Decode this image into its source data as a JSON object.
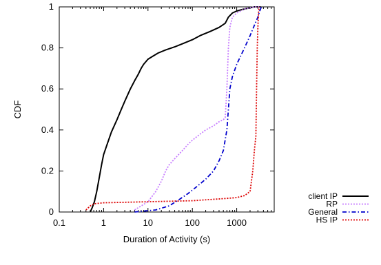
{
  "chart_data": {
    "type": "line",
    "title": "",
    "xlabel": "Duration of Activity (s)",
    "ylabel": "CDF",
    "xscale": "log",
    "xlim": [
      0.1,
      7000
    ],
    "ylim": [
      0,
      1
    ],
    "xticks": [
      {
        "value": 0.1,
        "label": "0.1"
      },
      {
        "value": 1,
        "label": "1"
      },
      {
        "value": 10,
        "label": "10"
      },
      {
        "value": 100,
        "label": "100"
      },
      {
        "value": 1000,
        "label": "1000"
      }
    ],
    "yticks": [
      {
        "value": 0,
        "label": "0"
      },
      {
        "value": 0.2,
        "label": "0.2"
      },
      {
        "value": 0.4,
        "label": "0.4"
      },
      {
        "value": 0.6,
        "label": "0.6"
      },
      {
        "value": 0.8,
        "label": "0.8"
      },
      {
        "value": 1,
        "label": "1"
      }
    ],
    "grid": false,
    "legend_position": "outside-bottom-right",
    "series": [
      {
        "name": "client IP",
        "color": "#000000",
        "dash": "solid",
        "points": [
          [
            0.5,
            0
          ],
          [
            0.55,
            0.02
          ],
          [
            0.62,
            0.05
          ],
          [
            0.7,
            0.1
          ],
          [
            0.8,
            0.17
          ],
          [
            0.9,
            0.23
          ],
          [
            1,
            0.28
          ],
          [
            1.2,
            0.33
          ],
          [
            1.5,
            0.39
          ],
          [
            2,
            0.45
          ],
          [
            2.5,
            0.5
          ],
          [
            3,
            0.54
          ],
          [
            4,
            0.6
          ],
          [
            5,
            0.64
          ],
          [
            6,
            0.67
          ],
          [
            7,
            0.7
          ],
          [
            8,
            0.72
          ],
          [
            10,
            0.745
          ],
          [
            13,
            0.76
          ],
          [
            17,
            0.775
          ],
          [
            25,
            0.79
          ],
          [
            40,
            0.805
          ],
          [
            60,
            0.82
          ],
          [
            100,
            0.84
          ],
          [
            150,
            0.86
          ],
          [
            250,
            0.88
          ],
          [
            400,
            0.9
          ],
          [
            550,
            0.92
          ],
          [
            650,
            0.95
          ],
          [
            800,
            0.97
          ],
          [
            1000,
            0.98
          ],
          [
            1500,
            0.99
          ],
          [
            2500,
            1
          ],
          [
            3500,
            1
          ]
        ]
      },
      {
        "name": "RP",
        "color": "#c77dff",
        "dash": "dotted",
        "points": [
          [
            5,
            0.01
          ],
          [
            10,
            0.05
          ],
          [
            15,
            0.1
          ],
          [
            20,
            0.15
          ],
          [
            25,
            0.2
          ],
          [
            30,
            0.23
          ],
          [
            40,
            0.26
          ],
          [
            60,
            0.3
          ],
          [
            80,
            0.33
          ],
          [
            100,
            0.35
          ],
          [
            150,
            0.38
          ],
          [
            200,
            0.4
          ],
          [
            300,
            0.42
          ],
          [
            400,
            0.44
          ],
          [
            500,
            0.45
          ],
          [
            550,
            0.46
          ],
          [
            600,
            0.6
          ],
          [
            650,
            0.8
          ],
          [
            700,
            0.9
          ],
          [
            800,
            0.95
          ],
          [
            1000,
            0.97
          ],
          [
            1500,
            0.99
          ],
          [
            2500,
            1
          ],
          [
            3500,
            1
          ]
        ]
      },
      {
        "name": "General",
        "color": "#0000cc",
        "dash": "dashdot",
        "points": [
          [
            5,
            0
          ],
          [
            15,
            0.01
          ],
          [
            30,
            0.03
          ],
          [
            50,
            0.06
          ],
          [
            80,
            0.09
          ],
          [
            120,
            0.12
          ],
          [
            200,
            0.16
          ],
          [
            300,
            0.2
          ],
          [
            400,
            0.25
          ],
          [
            500,
            0.3
          ],
          [
            600,
            0.4
          ],
          [
            650,
            0.5
          ],
          [
            700,
            0.6
          ],
          [
            800,
            0.66
          ],
          [
            1000,
            0.72
          ],
          [
            1500,
            0.8
          ],
          [
            2000,
            0.86
          ],
          [
            2500,
            0.91
          ],
          [
            3000,
            0.95
          ],
          [
            3300,
            0.98
          ],
          [
            3600,
            1
          ]
        ]
      },
      {
        "name": "HS IP",
        "color": "#dd0000",
        "dash": "dotted",
        "points": [
          [
            0.4,
            0.01
          ],
          [
            0.5,
            0.03
          ],
          [
            0.6,
            0.04
          ],
          [
            1,
            0.045
          ],
          [
            10,
            0.05
          ],
          [
            100,
            0.055
          ],
          [
            500,
            0.065
          ],
          [
            1000,
            0.07
          ],
          [
            1500,
            0.08
          ],
          [
            2000,
            0.1
          ],
          [
            2300,
            0.2
          ],
          [
            2500,
            0.3
          ],
          [
            2700,
            0.37
          ],
          [
            2800,
            0.6
          ],
          [
            2900,
            0.8
          ],
          [
            3000,
            0.9
          ],
          [
            3100,
            0.97
          ],
          [
            3200,
            1
          ]
        ]
      }
    ]
  }
}
